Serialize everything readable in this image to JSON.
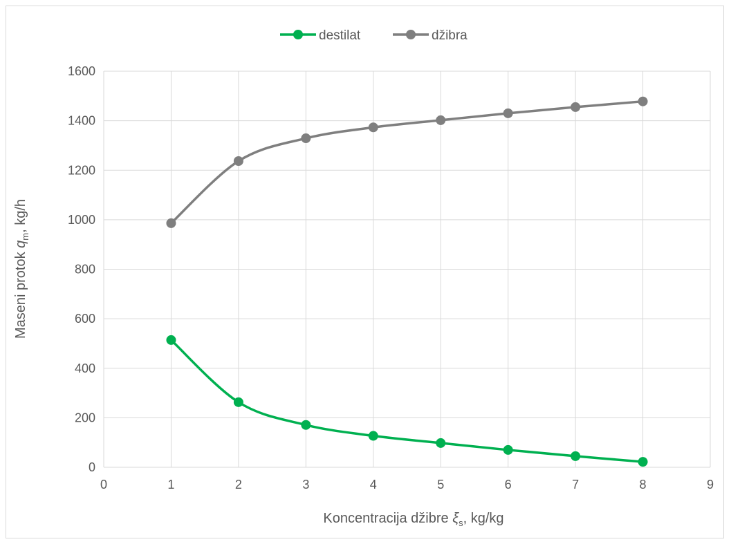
{
  "chart_data": {
    "type": "line",
    "title": "",
    "xlabel": {
      "main": "Koncentracija džibre ",
      "symbol": "ξ",
      "subscript": "s",
      "unit": ", kg/kg"
    },
    "ylabel": {
      "main": "Maseni protok ",
      "symbol": "q",
      "subscript": "m",
      "unit": ", kg/h"
    },
    "xlim": [
      0,
      9
    ],
    "ylim": [
      0,
      1600
    ],
    "xticks": [
      0,
      1,
      2,
      3,
      4,
      5,
      6,
      7,
      8,
      9
    ],
    "yticks": [
      0,
      200,
      400,
      600,
      800,
      1000,
      1200,
      1400,
      1600
    ],
    "grid": true,
    "smooth": true,
    "legend_position": "top",
    "x": [
      1,
      2,
      3,
      4,
      5,
      6,
      7,
      8
    ],
    "series": [
      {
        "name": "destilat",
        "color": "#00b050",
        "values": [
          514,
          263,
          171,
          127,
          98,
          70,
          45,
          22
        ]
      },
      {
        "name": "džibra",
        "color": "#7f7f7f",
        "values": [
          986,
          1237,
          1329,
          1373,
          1402,
          1430,
          1455,
          1478
        ]
      }
    ]
  }
}
